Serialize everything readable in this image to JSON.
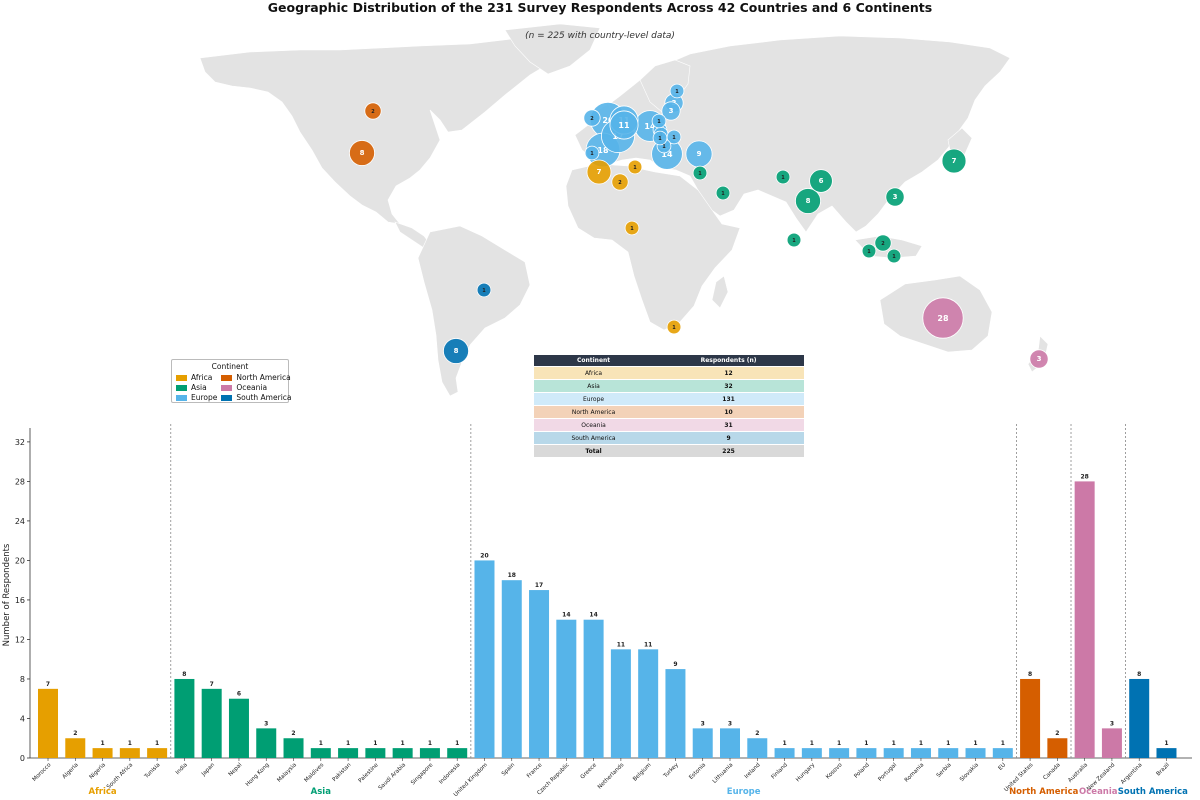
{
  "header": {
    "title": "Geographic Distribution of the 231 Survey Respondents Across 42 Countries and 6 Continents",
    "subtitle": "(n = 225 with country-level data)"
  },
  "colors": {
    "Africa": "#E69F00",
    "Asia": "#009E73",
    "Europe": "#56B4E9",
    "North America": "#D55E00",
    "Oceania": "#CC79A7",
    "South America": "#0072B2",
    "land": "#e3e3e3"
  },
  "legend": {
    "title": "Continent",
    "items": [
      "Africa",
      "North America",
      "Asia",
      "Oceania",
      "Europe",
      "South America"
    ]
  },
  "summary_table": {
    "headers": [
      "Continent",
      "Respondents (n)"
    ],
    "rows": [
      {
        "continent": "Africa",
        "n": "12"
      },
      {
        "continent": "Asia",
        "n": "32"
      },
      {
        "continent": "Europe",
        "n": "131"
      },
      {
        "continent": "North America",
        "n": "10"
      },
      {
        "continent": "Oceania",
        "n": "31"
      },
      {
        "continent": "South America",
        "n": "9"
      }
    ],
    "total": {
      "label": "Total",
      "n": "225"
    }
  },
  "map_bubbles": [
    {
      "country": "United Kingdom",
      "n": 20,
      "continent": "Europe"
    },
    {
      "country": "Spain",
      "n": 18,
      "continent": "Europe"
    },
    {
      "country": "France",
      "n": 17,
      "continent": "Europe"
    },
    {
      "country": "Czech Republic",
      "n": 14,
      "continent": "Europe"
    },
    {
      "country": "Greece",
      "n": 14,
      "continent": "Europe"
    },
    {
      "country": "Netherlands",
      "n": 11,
      "continent": "Europe"
    },
    {
      "country": "Belgium",
      "n": 11,
      "continent": "Europe"
    },
    {
      "country": "Turkey",
      "n": 9,
      "continent": "Europe"
    },
    {
      "country": "Estonia",
      "n": 3,
      "continent": "Europe"
    },
    {
      "country": "Lithuania",
      "n": 3,
      "continent": "Europe"
    },
    {
      "country": "Ireland",
      "n": 2,
      "continent": "Europe"
    },
    {
      "country": "Finland",
      "n": 1,
      "continent": "Europe"
    },
    {
      "country": "Hungary",
      "n": 1,
      "continent": "Europe"
    },
    {
      "country": "Kosovo",
      "n": 1,
      "continent": "Europe"
    },
    {
      "country": "Poland",
      "n": 1,
      "continent": "Europe"
    },
    {
      "country": "Portugal",
      "n": 1,
      "continent": "Europe"
    },
    {
      "country": "Romania",
      "n": 1,
      "continent": "Europe"
    },
    {
      "country": "Serbia",
      "n": 1,
      "continent": "Europe"
    },
    {
      "country": "Slovakia",
      "n": 1,
      "continent": "Europe"
    },
    {
      "country": "EU",
      "n": 1,
      "continent": "Europe"
    },
    {
      "country": "Morocco",
      "n": 7,
      "continent": "Africa"
    },
    {
      "country": "Algeria",
      "n": 2,
      "continent": "Africa"
    },
    {
      "country": "Tunisia",
      "n": 1,
      "continent": "Africa"
    },
    {
      "country": "Nigeria",
      "n": 1,
      "continent": "Africa"
    },
    {
      "country": "South Africa",
      "n": 1,
      "continent": "Africa"
    },
    {
      "country": "India",
      "n": 8,
      "continent": "Asia"
    },
    {
      "country": "Japan",
      "n": 7,
      "continent": "Asia"
    },
    {
      "country": "Nepal",
      "n": 6,
      "continent": "Asia"
    },
    {
      "country": "Hong Kong",
      "n": 3,
      "continent": "Asia"
    },
    {
      "country": "Malaysia",
      "n": 2,
      "continent": "Asia"
    },
    {
      "country": "Maldives",
      "n": 1,
      "continent": "Asia"
    },
    {
      "country": "Pakistan",
      "n": 1,
      "continent": "Asia"
    },
    {
      "country": "Palestine",
      "n": 1,
      "continent": "Asia"
    },
    {
      "country": "Saudi Arabia",
      "n": 1,
      "continent": "Asia"
    },
    {
      "country": "Singapore",
      "n": 1,
      "continent": "Asia"
    },
    {
      "country": "Indonesia",
      "n": 1,
      "continent": "Asia"
    },
    {
      "country": "United States",
      "n": 8,
      "continent": "North America"
    },
    {
      "country": "Canada",
      "n": 2,
      "continent": "North America"
    },
    {
      "country": "Australia",
      "n": 28,
      "continent": "Oceania"
    },
    {
      "country": "New Zealand",
      "n": 3,
      "continent": "Oceania"
    },
    {
      "country": "Argentina",
      "n": 8,
      "continent": "South America"
    },
    {
      "country": "Brazil",
      "n": 1,
      "continent": "South America"
    }
  ],
  "chart_data": {
    "type": "bar",
    "title": "",
    "xlabel": "",
    "ylabel": "Number of Respondents",
    "ylim": [
      0,
      33
    ],
    "yticks": [
      0,
      4,
      8,
      12,
      16,
      20,
      24,
      28,
      32
    ],
    "grid": false,
    "groups": [
      {
        "name": "Africa",
        "categories": [
          "Morocco",
          "Algeria",
          "Nigeria",
          "South Africa",
          "Tunisia"
        ],
        "values": [
          7,
          2,
          1,
          1,
          1
        ]
      },
      {
        "name": "Asia",
        "categories": [
          "India",
          "Japan",
          "Nepal",
          "Hong Kong",
          "Malaysia",
          "Maldives",
          "Pakistan",
          "Palestine",
          "Saudi Arabia",
          "Singapore",
          "Indonesia"
        ],
        "values": [
          8,
          7,
          6,
          3,
          2,
          1,
          1,
          1,
          1,
          1,
          1
        ]
      },
      {
        "name": "Europe",
        "categories": [
          "United Kingdom",
          "Spain",
          "France",
          "Czech Republic",
          "Greece",
          "Netherlands",
          "Belgium",
          "Turkey",
          "Estonia",
          "Lithuania",
          "Ireland",
          "Finland",
          "Hungary",
          "Kosovo",
          "Poland",
          "Portugal",
          "Romania",
          "Serbia",
          "Slovakia",
          "EU"
        ],
        "values": [
          20,
          18,
          17,
          14,
          14,
          11,
          11,
          9,
          3,
          3,
          2,
          1,
          1,
          1,
          1,
          1,
          1,
          1,
          1,
          1
        ]
      },
      {
        "name": "North America",
        "categories": [
          "United States",
          "Canada"
        ],
        "values": [
          8,
          2
        ]
      },
      {
        "name": "Oceania",
        "categories": [
          "Australia",
          "New Zealand"
        ],
        "values": [
          28,
          3
        ]
      },
      {
        "name": "South America",
        "categories": [
          "Argentina",
          "Brazil"
        ],
        "values": [
          8,
          1
        ]
      }
    ]
  }
}
